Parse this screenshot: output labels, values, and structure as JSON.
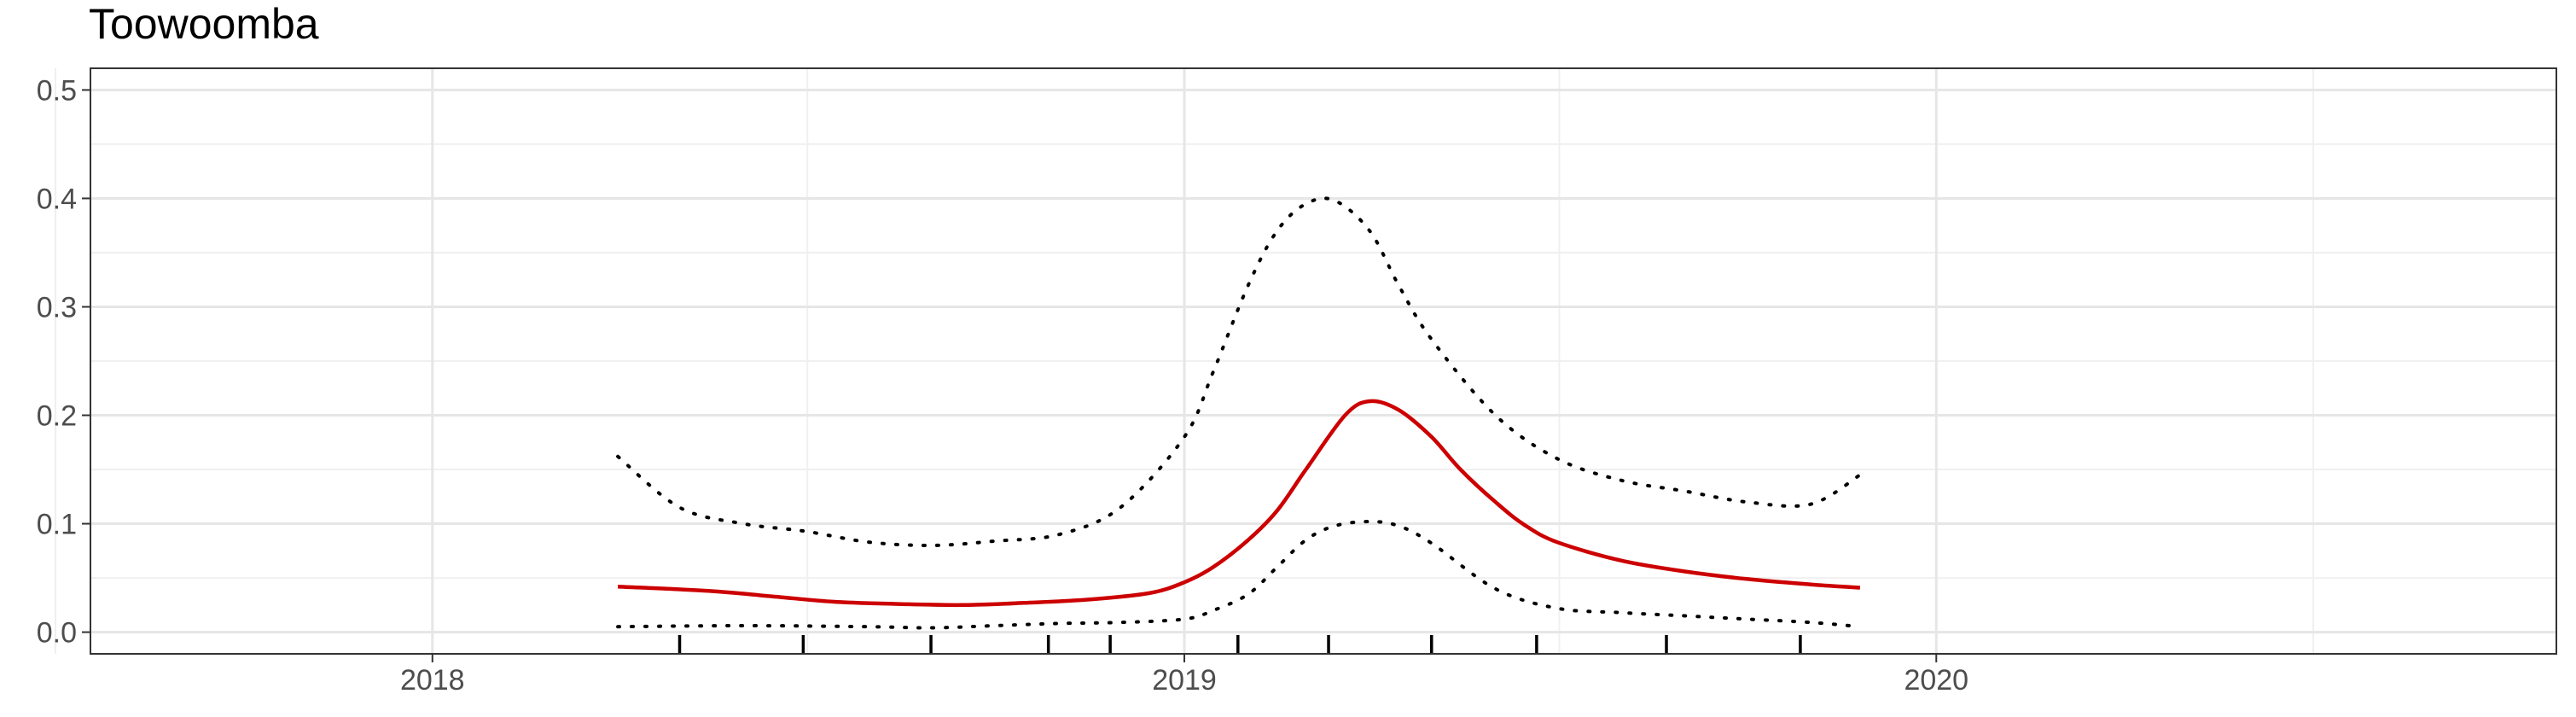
{
  "chart_data": {
    "type": "line",
    "title": "Toowoomba",
    "xlabel": "",
    "ylabel": "",
    "x_range": [
      "2017-07-19",
      "2020-10-28"
    ],
    "ylim": [
      -0.02,
      0.52
    ],
    "grid": true,
    "y_ticks": [
      0.0,
      0.1,
      0.2,
      0.3,
      0.4,
      0.5
    ],
    "y_tick_labels": [
      "0.0",
      "0.1",
      "0.2",
      "0.3",
      "0.4",
      "0.5"
    ],
    "x_ticks": [
      "2018-01-01",
      "2019-01-01",
      "2020-01-01"
    ],
    "x_tick_labels": [
      "2018",
      "2019",
      "2020"
    ],
    "x_minor_ticks": [
      "2017-07-02",
      "2018-07-02",
      "2019-07-02",
      "2020-07-02"
    ],
    "rug": [
      "2018-05-01",
      "2018-06-30",
      "2018-08-31",
      "2018-10-27",
      "2018-11-26",
      "2019-01-27",
      "2019-03-12",
      "2019-05-01",
      "2019-06-21",
      "2019-08-23",
      "2019-10-27"
    ],
    "series": [
      {
        "role": "estimate",
        "color": "#cc0000",
        "style": "solid",
        "x": [
          "2018-04-01",
          "2018-05-15",
          "2018-06-15",
          "2018-07-15",
          "2018-08-15",
          "2018-09-15",
          "2018-10-15",
          "2018-11-15",
          "2018-12-15",
          "2019-01-01",
          "2019-01-15",
          "2019-02-01",
          "2019-02-15",
          "2019-03-01",
          "2019-03-20",
          "2019-04-01",
          "2019-04-15",
          "2019-05-01",
          "2019-05-15",
          "2019-06-01",
          "2019-06-15",
          "2019-07-01",
          "2019-08-01",
          "2019-09-01",
          "2019-10-01",
          "2019-11-01",
          "2019-11-25"
        ],
        "values": [
          0.042,
          0.038,
          0.033,
          0.028,
          0.026,
          0.025,
          0.027,
          0.03,
          0.036,
          0.046,
          0.06,
          0.085,
          0.112,
          0.15,
          0.2,
          0.213,
          0.205,
          0.18,
          0.15,
          0.12,
          0.099,
          0.083,
          0.066,
          0.056,
          0.049,
          0.044,
          0.041
        ]
      },
      {
        "role": "upper",
        "color": "#000000",
        "style": "dotted",
        "x": [
          "2018-04-01",
          "2018-05-01",
          "2018-06-01",
          "2018-07-01",
          "2018-08-01",
          "2018-09-01",
          "2018-10-01",
          "2018-11-01",
          "2018-12-01",
          "2019-01-01",
          "2019-01-15",
          "2019-02-01",
          "2019-02-15",
          "2019-03-01",
          "2019-03-15",
          "2019-04-01",
          "2019-04-15",
          "2019-05-01",
          "2019-06-01",
          "2019-07-01",
          "2019-08-01",
          "2019-09-01",
          "2019-10-01",
          "2019-11-01",
          "2019-11-25"
        ],
        "values": [
          0.162,
          0.115,
          0.1,
          0.093,
          0.083,
          0.08,
          0.084,
          0.09,
          0.115,
          0.18,
          0.24,
          0.32,
          0.37,
          0.395,
          0.398,
          0.37,
          0.32,
          0.27,
          0.2,
          0.16,
          0.14,
          0.13,
          0.12,
          0.118,
          0.145
        ]
      },
      {
        "role": "lower",
        "color": "#000000",
        "style": "dotted",
        "x": [
          "2018-04-01",
          "2018-06-01",
          "2018-08-01",
          "2018-09-01",
          "2018-10-01",
          "2018-11-01",
          "2018-12-01",
          "2019-01-01",
          "2019-01-15",
          "2019-02-01",
          "2019-02-15",
          "2019-03-01",
          "2019-03-15",
          "2019-04-01",
          "2019-04-15",
          "2019-05-01",
          "2019-06-01",
          "2019-07-01",
          "2019-08-01",
          "2019-09-01",
          "2019-10-01",
          "2019-11-01",
          "2019-11-25"
        ],
        "values": [
          0.005,
          0.006,
          0.005,
          0.004,
          0.006,
          0.008,
          0.009,
          0.012,
          0.02,
          0.035,
          0.06,
          0.085,
          0.098,
          0.102,
          0.098,
          0.082,
          0.04,
          0.022,
          0.018,
          0.015,
          0.012,
          0.009,
          0.005
        ]
      }
    ]
  }
}
